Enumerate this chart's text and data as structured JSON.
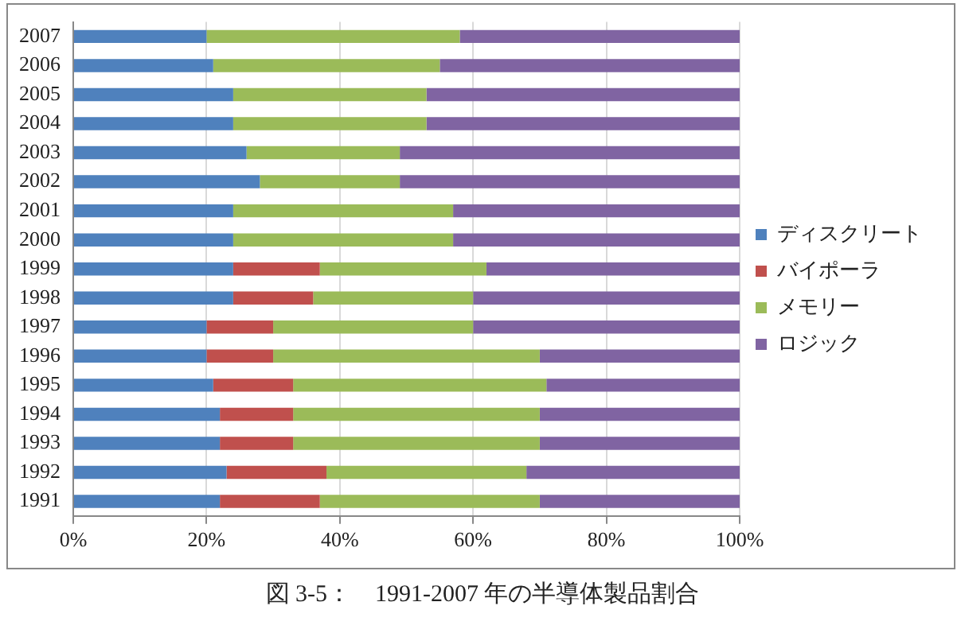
{
  "chart_data": {
    "type": "bar",
    "orientation": "horizontal",
    "stacked": true,
    "title": "図 3-5：　1991-2007 年の半導体製品割合",
    "categories": [
      "2007",
      "2006",
      "2005",
      "2004",
      "2003",
      "2002",
      "2001",
      "2000",
      "1999",
      "1998",
      "1997",
      "1996",
      "1995",
      "1994",
      "1993",
      "1992",
      "1991"
    ],
    "series": [
      {
        "name": "ディスクリート",
        "color": "#4f81bd",
        "values": [
          20,
          21,
          24,
          24,
          26,
          28,
          24,
          24,
          24,
          24,
          20,
          20,
          21,
          22,
          22,
          23,
          22
        ]
      },
      {
        "name": "バイポーラ",
        "color": "#c0504d",
        "values": [
          0,
          0,
          0,
          0,
          0,
          0,
          0,
          0,
          13,
          12,
          10,
          10,
          12,
          11,
          11,
          15,
          15
        ]
      },
      {
        "name": "メモリー",
        "color": "#9bbb59",
        "values": [
          38,
          34,
          29,
          29,
          23,
          21,
          33,
          33,
          25,
          24,
          30,
          40,
          38,
          37,
          37,
          30,
          33
        ]
      },
      {
        "name": "ロジック",
        "color": "#8064a2",
        "values": [
          42,
          45,
          47,
          47,
          51,
          51,
          43,
          43,
          38,
          40,
          40,
          30,
          29,
          30,
          30,
          32,
          30
        ]
      }
    ],
    "xlim": [
      0,
      100
    ],
    "xticks": [
      {
        "value": 0,
        "label": "0%"
      },
      {
        "value": 20,
        "label": "20%"
      },
      {
        "value": 40,
        "label": "40%"
      },
      {
        "value": 60,
        "label": "60%"
      },
      {
        "value": 80,
        "label": "80%"
      },
      {
        "value": 100,
        "label": "100%"
      }
    ],
    "grid": "x",
    "legend": "right"
  }
}
